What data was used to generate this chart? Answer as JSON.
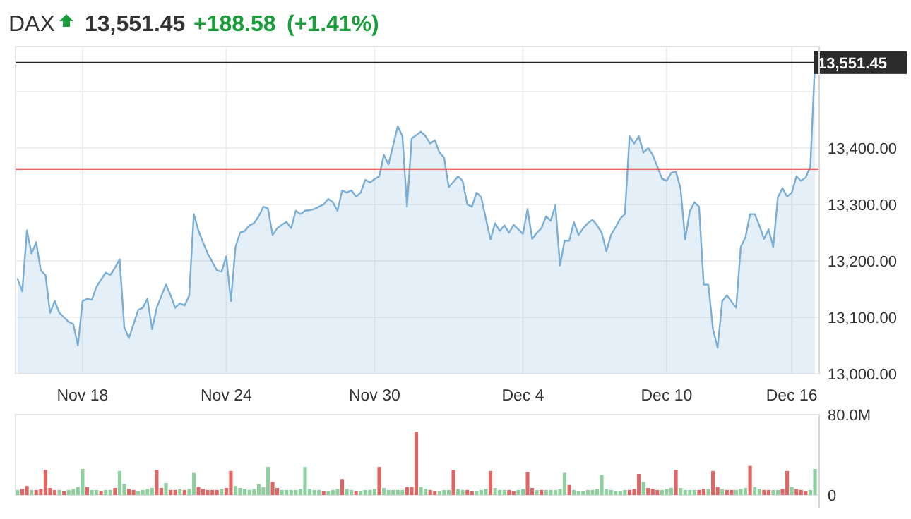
{
  "chart_data": [
    {
      "type": "area",
      "title": "DAX",
      "annotations": [
        "13,551.45",
        "+188.58",
        "(+1.41%)"
      ],
      "categories": [
        null,
        null,
        null,
        null,
        null,
        null,
        null,
        null,
        null,
        null,
        null,
        null,
        null,
        null,
        "Nov 18",
        null,
        null,
        null,
        null,
        null,
        null,
        null,
        null,
        null,
        null,
        null,
        null,
        null,
        null,
        null,
        null,
        null,
        null,
        null,
        null,
        null,
        null,
        null,
        null,
        null,
        null,
        null,
        null,
        null,
        null,
        "Nov 24",
        null,
        null,
        null,
        null,
        null,
        null,
        null,
        null,
        null,
        null,
        null,
        null,
        null,
        null,
        null,
        null,
        null,
        null,
        null,
        null,
        null,
        null,
        null,
        null,
        null,
        null,
        null,
        null,
        null,
        null,
        null,
        "Nov 30",
        null,
        null,
        null,
        null,
        null,
        null,
        null,
        null,
        null,
        null,
        null,
        null,
        null,
        null,
        null,
        null,
        null,
        null,
        null,
        null,
        null,
        null,
        null,
        null,
        null,
        null,
        null,
        null,
        null,
        null,
        null,
        "Dec 4",
        null,
        null,
        null,
        null,
        null,
        null,
        null,
        null,
        null,
        null,
        null,
        null,
        null,
        null,
        null,
        null,
        null,
        null,
        null,
        null,
        null,
        null,
        null,
        null,
        null,
        null,
        null,
        null,
        null,
        null,
        "Dec 10",
        null,
        null,
        null,
        null,
        null,
        null,
        null,
        null,
        null,
        null,
        null,
        null,
        null,
        null,
        null,
        null,
        null,
        null,
        null,
        null,
        null,
        null,
        null,
        null,
        null,
        null,
        "Dec 16",
        null,
        null,
        null,
        null,
        null
      ],
      "values": [
        13168,
        13146,
        13254,
        13213,
        13233,
        13183,
        13175,
        13108,
        13129,
        13108,
        13100,
        13092,
        13088,
        13050,
        13129,
        13133,
        13131,
        13154,
        13167,
        13179,
        13175,
        13188,
        13203,
        13083,
        13063,
        13088,
        13113,
        13117,
        13133,
        13079,
        13117,
        13138,
        13158,
        13139,
        13117,
        13125,
        13121,
        13138,
        13283,
        13254,
        13233,
        13213,
        13198,
        13183,
        13181,
        13208,
        13129,
        13225,
        13250,
        13253,
        13263,
        13267,
        13279,
        13296,
        13293,
        13246,
        13258,
        13264,
        13269,
        13258,
        13289,
        13283,
        13289,
        13290,
        13292,
        13296,
        13300,
        13310,
        13304,
        13289,
        13325,
        13321,
        13325,
        13314,
        13321,
        13344,
        13339,
        13345,
        13350,
        13388,
        13371,
        13405,
        13439,
        13421,
        13296,
        13417,
        13423,
        13429,
        13421,
        13408,
        13414,
        13392,
        13383,
        13331,
        13340,
        13350,
        13342,
        13300,
        13296,
        13321,
        13313,
        13275,
        13238,
        13267,
        13253,
        13263,
        13250,
        13264,
        13256,
        13248,
        13292,
        13239,
        13250,
        13258,
        13279,
        13271,
        13299,
        13192,
        13236,
        13236,
        13269,
        13246,
        13258,
        13267,
        13273,
        13263,
        13250,
        13217,
        13246,
        13260,
        13275,
        13283,
        13421,
        13408,
        13421,
        13392,
        13400,
        13388,
        13367,
        13346,
        13342,
        13356,
        13358,
        13329,
        13238,
        13288,
        13304,
        13296,
        13158,
        13158,
        13079,
        13046,
        13129,
        13139,
        13128,
        13117,
        13225,
        13242,
        13283,
        13283,
        13263,
        13239,
        13256,
        13225,
        13313,
        13329,
        13314,
        13321,
        13350,
        13342,
        13348,
        13367,
        13551.45
      ],
      "color": "#7aaed6",
      "ylim": [
        13000,
        13580
      ],
      "yticks": [
        {
          "value": 13000,
          "label": "13,000.00"
        },
        {
          "value": 13100,
          "label": "13,100.00"
        },
        {
          "value": 13200,
          "label": "13,200.00"
        },
        {
          "value": 13300,
          "label": "13,300.00"
        },
        {
          "value": 13400,
          "label": "13,400.00"
        },
        {
          "value": 13500,
          "label": null
        }
      ],
      "grid": true,
      "ref_lines": [
        {
          "axis": "y",
          "value": 13551.45,
          "label": "13,551.45",
          "color": "#222222"
        },
        {
          "axis": "y",
          "value": 13362.87,
          "color": "#e03b3b"
        }
      ]
    },
    {
      "type": "bar",
      "tick_labels": "y",
      "ylim": [
        0,
        80
      ],
      "categories": [
        null,
        null,
        null,
        null,
        null,
        null,
        null,
        null,
        null,
        null,
        null,
        null,
        null,
        null,
        null,
        null,
        null,
        null,
        null,
        null,
        null,
        null,
        null,
        null,
        null,
        null,
        null,
        null,
        null,
        null,
        null,
        null,
        null,
        null,
        null,
        null,
        null,
        null,
        null,
        null,
        null,
        null,
        null,
        null,
        null,
        null,
        null,
        null,
        null,
        null,
        null,
        null,
        null,
        null,
        null,
        null,
        null,
        null,
        null,
        null,
        null,
        null,
        null,
        null,
        null,
        null,
        null,
        null,
        null,
        null,
        null,
        null,
        null,
        null,
        null,
        null,
        null,
        null,
        null,
        null,
        null,
        null,
        null,
        null,
        null,
        null,
        null,
        null,
        null,
        null,
        null,
        null,
        null,
        null,
        null,
        null,
        null,
        null,
        null,
        null,
        null,
        null,
        null,
        null,
        null,
        null,
        null,
        null,
        null,
        null,
        null,
        null,
        null,
        null,
        null,
        null,
        null,
        null,
        null,
        null,
        null,
        null,
        null,
        null,
        null,
        null,
        null,
        null,
        null,
        null,
        null,
        null,
        null,
        null,
        null,
        null,
        null,
        null,
        null,
        null,
        null,
        null,
        null,
        null,
        null,
        null,
        null,
        null,
        null,
        null,
        null,
        null,
        null,
        null,
        null,
        null,
        null,
        null,
        null,
        null,
        null,
        null,
        null,
        null,
        null,
        null,
        null,
        null,
        null,
        null,
        null,
        null,
        null
      ],
      "yticks": [
        0,
        {
          "value": 80,
          "label": "80.0M"
        }
      ],
      "values": [
        5,
        6,
        9,
        5,
        5,
        6,
        25,
        7,
        5,
        5,
        4,
        5,
        6,
        8,
        26,
        8,
        5,
        5,
        4,
        5,
        5,
        7,
        24,
        11,
        6,
        5,
        4,
        5,
        6,
        7,
        25,
        7,
        12,
        5,
        5,
        6,
        5,
        6,
        22,
        8,
        6,
        5,
        5,
        5,
        6,
        7,
        24,
        9,
        7,
        6,
        5,
        6,
        11,
        8,
        28,
        13,
        7,
        5,
        5,
        5,
        5,
        6,
        28,
        6,
        5,
        5,
        4,
        4,
        5,
        6,
        16,
        6,
        5,
        4,
        4,
        5,
        5,
        6,
        28,
        7,
        5,
        5,
        5,
        5,
        8,
        8,
        63,
        8,
        6,
        5,
        4,
        4,
        5,
        5,
        25,
        6,
        5,
        5,
        4,
        4,
        5,
        6,
        24,
        7,
        5,
        5,
        5,
        4,
        5,
        6,
        23,
        7,
        5,
        5,
        5,
        5,
        5,
        6,
        22,
        10,
        5,
        4,
        4,
        5,
        5,
        6,
        20,
        6,
        5,
        4,
        4,
        5,
        5,
        6,
        21,
        13,
        7,
        6,
        5,
        5,
        6,
        7,
        25,
        7,
        5,
        5,
        5,
        5,
        6,
        6,
        24,
        8,
        6,
        5,
        5,
        5,
        6,
        7,
        29,
        8,
        6,
        5,
        5,
        5,
        5,
        6,
        24,
        8,
        6,
        5,
        4,
        5,
        26
      ],
      "colors": [
        "#8fcf9f",
        "#e06666",
        "#e06666",
        "#8fcf9f",
        "#e06666",
        "#e06666",
        "#e06666",
        "#e06666",
        "#e06666",
        "#8fcf9f",
        "#e06666",
        "#8fcf9f",
        "#8fcf9f",
        "#8fcf9f",
        "#8fcf9f",
        "#e06666",
        "#8fcf9f",
        "#8fcf9f",
        "#e06666",
        "#8fcf9f",
        "#8fcf9f",
        "#e06666",
        "#8fcf9f",
        "#8fcf9f",
        "#e06666",
        "#e06666",
        "#8fcf9f",
        "#8fcf9f",
        "#8fcf9f",
        "#8fcf9f",
        "#e06666",
        "#e06666",
        "#8fcf9f",
        "#e06666",
        "#e06666",
        "#8fcf9f",
        "#e06666",
        "#8fcf9f",
        "#8fcf9f",
        "#e06666",
        "#e06666",
        "#e06666",
        "#e06666",
        "#e06666",
        "#8fcf9f",
        "#e06666",
        "#e06666",
        "#8fcf9f",
        "#8fcf9f",
        "#8fcf9f",
        "#8fcf9f",
        "#8fcf9f",
        "#8fcf9f",
        "#8fcf9f",
        "#8fcf9f",
        "#e06666",
        "#e06666",
        "#8fcf9f",
        "#8fcf9f",
        "#8fcf9f",
        "#8fcf9f",
        "#8fcf9f",
        "#8fcf9f",
        "#8fcf9f",
        "#8fcf9f",
        "#8fcf9f",
        "#e06666",
        "#8fcf9f",
        "#8fcf9f",
        "#8fcf9f",
        "#e06666",
        "#8fcf9f",
        "#8fcf9f",
        "#e06666",
        "#8fcf9f",
        "#8fcf9f",
        "#8fcf9f",
        "#8fcf9f",
        "#e06666",
        "#8fcf9f",
        "#8fcf9f",
        "#8fcf9f",
        "#8fcf9f",
        "#8fcf9f",
        "#e06666",
        "#e06666",
        "#e06666",
        "#8fcf9f",
        "#8fcf9f",
        "#e06666",
        "#e06666",
        "#8fcf9f",
        "#8fcf9f",
        "#8fcf9f",
        "#e06666",
        "#8fcf9f",
        "#8fcf9f",
        "#e06666",
        "#e06666",
        "#8fcf9f",
        "#8fcf9f",
        "#8fcf9f",
        "#e06666",
        "#8fcf9f",
        "#8fcf9f",
        "#8fcf9f",
        "#e06666",
        "#e06666",
        "#8fcf9f",
        "#8fcf9f",
        "#e06666",
        "#e06666",
        "#8fcf9f",
        "#e06666",
        "#8fcf9f",
        "#8fcf9f",
        "#8fcf9f",
        "#8fcf9f",
        "#8fcf9f",
        "#e06666",
        "#8fcf9f",
        "#8fcf9f",
        "#8fcf9f",
        "#8fcf9f",
        "#8fcf9f",
        "#8fcf9f",
        "#8fcf9f",
        "#8fcf9f",
        "#8fcf9f",
        "#8fcf9f",
        "#8fcf9f",
        "#8fcf9f",
        "#e06666",
        "#e06666",
        "#e06666",
        "#8fcf9f",
        "#e06666",
        "#e06666",
        "#e06666",
        "#8fcf9f",
        "#8fcf9f",
        "#8fcf9f",
        "#e06666",
        "#8fcf9f",
        "#8fcf9f",
        "#8fcf9f",
        "#8fcf9f",
        "#e06666",
        "#e06666",
        "#8fcf9f",
        "#e06666",
        "#e06666",
        "#8fcf9f",
        "#e06666",
        "#e06666",
        "#8fcf9f",
        "#8fcf9f",
        "#8fcf9f",
        "#e06666",
        "#8fcf9f",
        "#8fcf9f",
        "#e06666",
        "#e06666",
        "#8fcf9f",
        "#8fcf9f",
        "#e06666",
        "#e06666",
        "#8fcf9f",
        "#e06666",
        "#e06666",
        "#e06666",
        "#8fcf9f",
        "#8fcf9f"
      ]
    }
  ]
}
